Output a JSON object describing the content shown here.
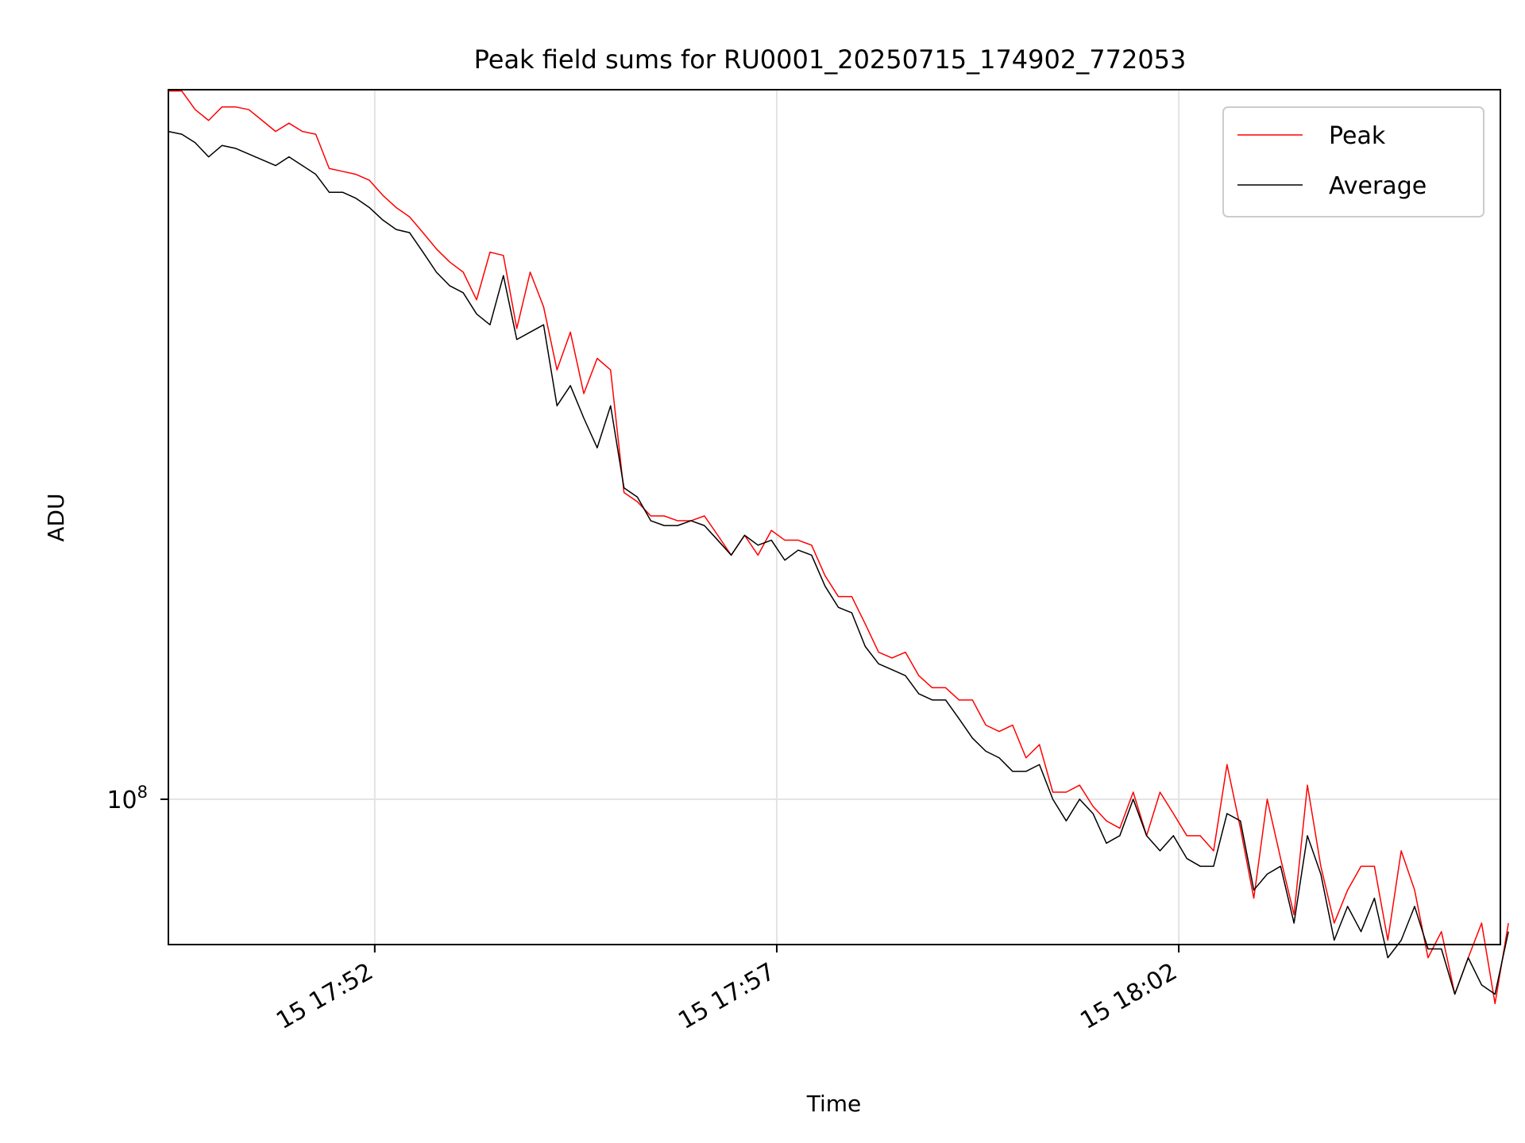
{
  "chart_data": {
    "type": "line",
    "title": "Peak field sums for RU0001_20250715_174902_772053",
    "xlabel": "Time",
    "ylabel": "ADU",
    "y_scale": "log",
    "grid": true,
    "legend_position": "top-right",
    "x_start": "2025-07-15 17:49:26",
    "x_step_seconds": 10,
    "xlim": [
      "2025-07-15 17:49:26",
      "2025-07-15 18:06:00"
    ],
    "ylim": [
      81500000,
      271500000
    ],
    "x_ticks": [
      {
        "value": "2025-07-15 17:52:00",
        "label": "15 17:52"
      },
      {
        "value": "2025-07-15 17:57:00",
        "label": "15 17:57"
      },
      {
        "value": "2025-07-15 18:02:00",
        "label": "15 18:02"
      }
    ],
    "y_ticks": [
      {
        "value": 100000000,
        "label_base": "10",
        "label_exp": "8"
      }
    ],
    "series": [
      {
        "name": "Peak",
        "color": "#ff0000",
        "values": [
          271,
          271,
          264,
          260,
          265,
          265,
          264,
          260,
          256,
          259,
          256,
          255,
          243,
          242,
          241,
          239,
          234,
          230,
          227,
          222,
          217,
          213,
          210,
          202,
          216,
          215,
          194,
          210,
          200,
          183,
          193,
          177,
          186,
          183,
          154,
          152,
          149,
          149,
          148,
          148,
          149,
          145,
          141,
          145,
          141,
          146,
          144,
          144,
          143,
          137,
          133,
          133,
          128,
          123,
          122,
          123,
          119,
          117,
          117,
          115,
          115,
          111,
          110,
          111,
          106,
          108,
          101,
          101,
          102,
          99,
          97,
          96,
          101,
          95,
          101,
          98,
          95,
          95,
          93,
          105,
          96,
          87,
          100,
          92,
          85,
          102,
          91,
          84,
          88,
          91,
          91,
          82,
          93,
          88,
          80,
          83,
          76,
          80,
          84,
          75,
          84
        ]
      },
      {
        "name": "Average",
        "color": "#000000",
        "values": [
          256,
          255,
          252,
          247,
          251,
          250,
          248,
          246,
          244,
          247,
          244,
          241,
          235,
          235,
          233,
          230,
          226,
          223,
          222,
          216,
          210,
          206,
          204,
          198,
          195,
          209,
          191,
          193,
          195,
          174,
          179,
          171,
          164,
          174,
          155,
          153,
          148,
          147,
          147,
          148,
          147,
          144,
          141,
          145,
          143,
          144,
          140,
          142,
          141,
          135,
          131,
          130,
          124,
          121,
          120,
          119,
          116,
          115,
          115,
          112,
          109,
          107,
          106,
          104,
          104,
          105,
          100,
          97,
          100,
          98,
          94,
          95,
          100,
          95,
          93,
          95,
          92,
          91,
          91,
          98,
          97,
          88,
          90,
          91,
          84,
          95,
          90,
          82,
          86,
          83,
          87,
          80,
          82,
          86,
          81,
          81,
          76,
          80,
          77,
          76,
          83
        ]
      }
    ],
    "legend": [
      "Peak",
      "Average"
    ]
  }
}
